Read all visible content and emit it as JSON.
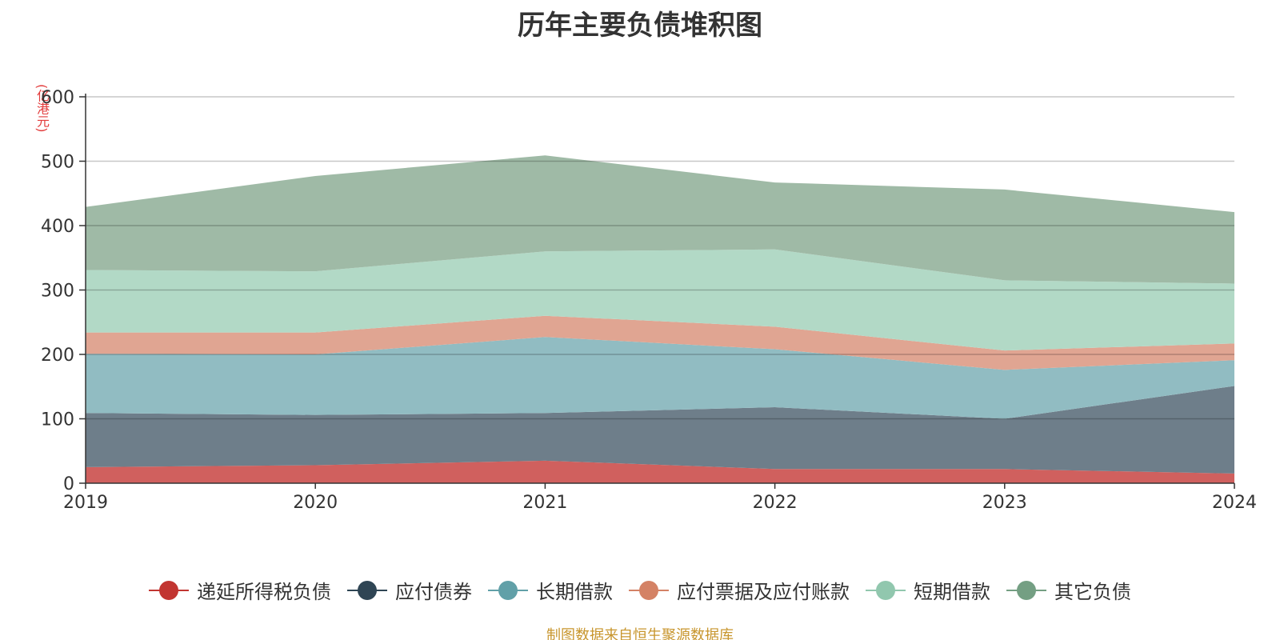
{
  "chart_data": {
    "type": "area",
    "stacked": true,
    "title": "历年主要负债堆积图",
    "unit_label": "(亿港元)",
    "xlabel": "",
    "ylabel": "",
    "x": [
      "2019",
      "2020",
      "2021",
      "2022",
      "2023",
      "2024"
    ],
    "ylim": [
      0,
      600
    ],
    "yticks": [
      0,
      100,
      200,
      300,
      400,
      500,
      600
    ],
    "grid": true,
    "legend_position": "bottom",
    "series": [
      {
        "name": "递延所得税负债",
        "color": "#d0605e",
        "legend_color": "#c23531",
        "values": [
          25,
          28,
          35,
          22,
          22,
          15
        ]
      },
      {
        "name": "应付债券",
        "color": "#6e7e8a",
        "legend_color": "#2f4554",
        "values": [
          84,
          78,
          74,
          96,
          78,
          136
        ]
      },
      {
        "name": "长期借款",
        "color": "#91bcc2",
        "legend_color": "#61a0a8",
        "values": [
          92,
          94,
          118,
          90,
          76,
          40
        ]
      },
      {
        "name": "应付票据及应付账款",
        "color": "#e0a592",
        "legend_color": "#d48265",
        "values": [
          33,
          34,
          33,
          35,
          30,
          26
        ]
      },
      {
        "name": "短期借款",
        "color": "#b2d9c6",
        "legend_color": "#91c7ae",
        "values": [
          97,
          95,
          100,
          120,
          109,
          93
        ]
      },
      {
        "name": "其它负债",
        "color": "#9fbaa6",
        "legend_color": "#749f83",
        "values": [
          98,
          148,
          149,
          104,
          141,
          111
        ]
      }
    ],
    "source_note": "制图数据来自恒生聚源数据库"
  }
}
